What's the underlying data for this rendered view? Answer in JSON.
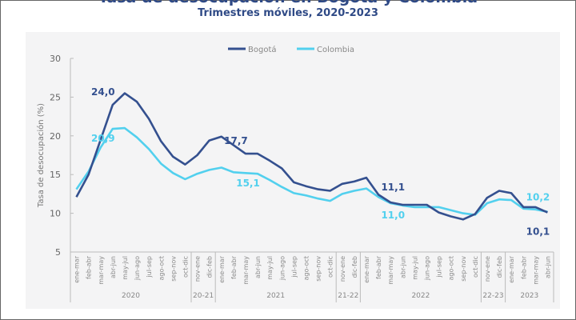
{
  "title": "Tasa de desocupación en Bogotá y Colombia",
  "subtitle": "Trimestres móviles, 2020-2023",
  "chart_data": {
    "type": "line",
    "title": "Tasa de desocupación en Bogotá y Colombia",
    "subtitle": "Trimestres móviles, 2020-2023",
    "ylabel": "Tasa de desocupación (%)",
    "xlabel": "",
    "ylim": [
      5,
      30
    ],
    "yticks": [
      5,
      10,
      15,
      20,
      25,
      30
    ],
    "grid": false,
    "legend": "top-center",
    "categories": [
      "ene-mar",
      "feb-abr",
      "mar-may",
      "abr-jun",
      "may-jul",
      "jun-ago",
      "jul-sep",
      "ago-oct",
      "sep-nov",
      "oct-dic",
      "nov-ene",
      "dic-feb",
      "ene-mar",
      "feb-abr",
      "mar-may",
      "abr-jun",
      "may-jul",
      "jun-ago",
      "jul-sep",
      "ago-oct",
      "sep-nov",
      "oct-dic",
      "nov-ene",
      "dic-feb",
      "ene-mar",
      "feb-abr",
      "mar-may",
      "abr-jun",
      "may-jul",
      "jun-ago",
      "jul-sep",
      "ago-oct",
      "sep-nov",
      "oct-dic",
      "nov-ene",
      "dic-feb",
      "ene-mar",
      "feb-abr",
      "mar-may",
      "abr-jun"
    ],
    "groups": [
      {
        "label": "2020",
        "count": 10
      },
      {
        "label": "20-21",
        "count": 2
      },
      {
        "label": "2021",
        "count": 10
      },
      {
        "label": "21-22",
        "count": 2
      },
      {
        "label": "2022",
        "count": 10
      },
      {
        "label": "22-23",
        "count": 2
      },
      {
        "label": "2023",
        "count": 4
      }
    ],
    "series": [
      {
        "name": "Bogotá",
        "color": "#34508f",
        "values": [
          12.1,
          15.0,
          19.5,
          24.0,
          25.5,
          24.4,
          22.2,
          19.3,
          17.3,
          16.3,
          17.5,
          19.4,
          19.9,
          18.8,
          17.7,
          17.7,
          16.8,
          15.8,
          14.0,
          13.5,
          13.1,
          12.9,
          13.8,
          14.1,
          14.6,
          12.4,
          11.4,
          11.1,
          11.1,
          11.1,
          10.1,
          9.6,
          9.2,
          9.9,
          12.0,
          12.9,
          12.6,
          10.8,
          10.8,
          10.1
        ]
      },
      {
        "name": "Colombia",
        "color": "#52d0ee",
        "values": [
          13.1,
          15.4,
          18.5,
          20.9,
          21.0,
          19.8,
          18.3,
          16.4,
          15.2,
          14.4,
          15.1,
          15.6,
          15.9,
          15.3,
          15.2,
          15.1,
          14.3,
          13.4,
          12.6,
          12.3,
          11.9,
          11.6,
          12.5,
          12.9,
          13.2,
          12.1,
          11.3,
          11.0,
          10.8,
          10.8,
          10.8,
          10.4,
          10.0,
          9.8,
          11.3,
          11.8,
          11.7,
          10.6,
          10.5,
          10.2
        ]
      }
    ],
    "annotations": [
      {
        "series": "Bogotá",
        "index": 3,
        "text": "24,0"
      },
      {
        "series": "Colombia",
        "index": 3,
        "text": "20,9"
      },
      {
        "series": "Bogotá",
        "index": 14,
        "text": "17,7"
      },
      {
        "series": "Colombia",
        "index": 15,
        "text": "15,1"
      },
      {
        "series": "Bogotá",
        "index": 27,
        "text": "11,1"
      },
      {
        "series": "Colombia",
        "index": 27,
        "text": "11,0"
      },
      {
        "series": "Colombia",
        "index": 39,
        "text": "10,2"
      },
      {
        "series": "Bogotá",
        "index": 39,
        "text": "10,1"
      }
    ]
  }
}
